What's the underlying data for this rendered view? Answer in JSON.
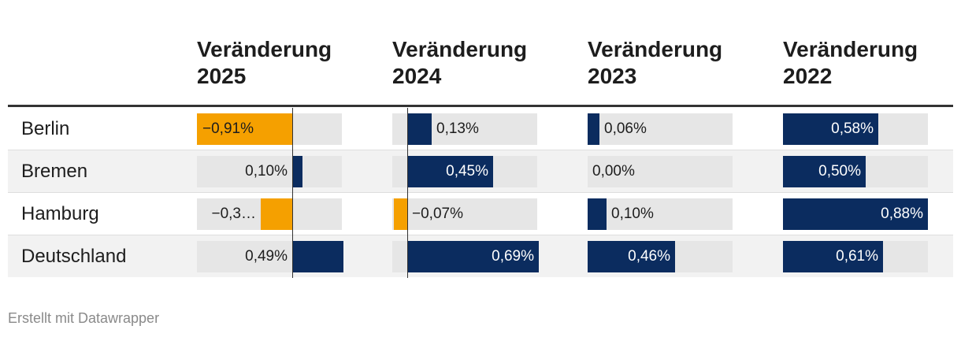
{
  "footer": "Erstellt mit Datawrapper",
  "colors": {
    "positive": "#0b2c5f",
    "negative": "#f5a000",
    "track": "#e6e6e6"
  },
  "chart_data": {
    "type": "table",
    "rows": [
      "Berlin",
      "Bremen",
      "Hamburg",
      "Deutschland"
    ],
    "columns": [
      {
        "title_line1": "Veränderung",
        "title_line2": "2025",
        "values": [
          -0.91,
          0.1,
          -0.3,
          0.49
        ],
        "labels": [
          "−0,91%",
          "0,10%",
          "−0,3…",
          "0,49%"
        ]
      },
      {
        "title_line1": "Veränderung",
        "title_line2": "2024",
        "values": [
          0.13,
          0.45,
          -0.07,
          0.69
        ],
        "labels": [
          "0,13%",
          "0,45%",
          "−0,07%",
          "0,69%"
        ]
      },
      {
        "title_line1": "Veränderung",
        "title_line2": "2023",
        "values": [
          0.06,
          0.0,
          0.1,
          0.46
        ],
        "labels": [
          "0,06%",
          "0,00%",
          "0,10%",
          "0,46%"
        ]
      },
      {
        "title_line1": "Veränderung",
        "title_line2": "2022",
        "values": [
          0.58,
          0.5,
          0.88,
          0.61
        ],
        "labels": [
          "0,58%",
          "0,50%",
          "0,88%",
          "0,61%"
        ]
      }
    ]
  }
}
